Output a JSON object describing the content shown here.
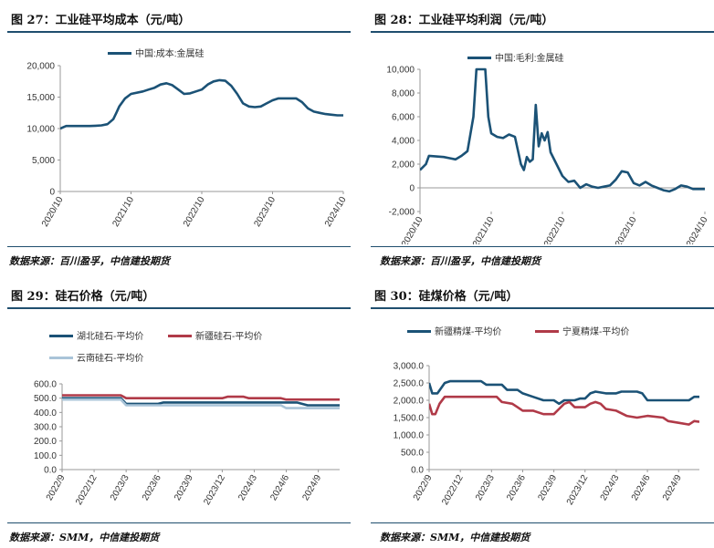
{
  "panels": [
    {
      "title": "图 27：工业硅平均成本（元/吨）",
      "source": "数据来源：百川盈孚，中信建投期货",
      "chart_data": {
        "type": "line",
        "ylim": [
          0,
          20000
        ],
        "yticks": [
          "0",
          "5,000",
          "10,000",
          "15,000",
          "20,000"
        ],
        "xlim": [
          0,
          48
        ],
        "xticks": [
          {
            "label": "2020/10",
            "x": 0
          },
          {
            "label": "2021/10",
            "x": 12
          },
          {
            "label": "2022/10",
            "x": 24
          },
          {
            "label": "2023/10",
            "x": 36
          },
          {
            "label": "2024/10",
            "x": 48
          }
        ],
        "legend_position": "top-center",
        "series": [
          {
            "name": "中国:成本:金属硅",
            "color": "#1b5276",
            "points": [
              [
                0,
                10000
              ],
              [
                0.5,
                10200
              ],
              [
                1,
                10400
              ],
              [
                5,
                10400
              ],
              [
                6,
                10450
              ],
              [
                7,
                10500
              ],
              [
                8,
                10700
              ],
              [
                9,
                11500
              ],
              [
                9.5,
                12500
              ],
              [
                10,
                13500
              ],
              [
                11,
                14800
              ],
              [
                12,
                15500
              ],
              [
                14,
                15900
              ],
              [
                15,
                16200
              ],
              [
                16,
                16500
              ],
              [
                17,
                17000
              ],
              [
                18,
                17200
              ],
              [
                19,
                16900
              ],
              [
                20,
                16200
              ],
              [
                21,
                15500
              ],
              [
                22,
                15600
              ],
              [
                23,
                15900
              ],
              [
                24,
                16200
              ],
              [
                25,
                17000
              ],
              [
                26,
                17500
              ],
              [
                27,
                17700
              ],
              [
                28,
                17600
              ],
              [
                29,
                16800
              ],
              [
                30,
                15500
              ],
              [
                31,
                14000
              ],
              [
                32,
                13500
              ],
              [
                33,
                13400
              ],
              [
                34,
                13500
              ],
              [
                35,
                14000
              ],
              [
                36,
                14500
              ],
              [
                37,
                14800
              ],
              [
                38,
                14800
              ],
              [
                39,
                14800
              ],
              [
                40,
                14800
              ],
              [
                41,
                14200
              ],
              [
                42,
                13200
              ],
              [
                43,
                12700
              ],
              [
                44,
                12500
              ],
              [
                45,
                12300
              ],
              [
                46,
                12200
              ],
              [
                47,
                12100
              ],
              [
                48,
                12100
              ]
            ]
          }
        ]
      }
    },
    {
      "title": "图 28：工业硅平均利润（元/吨）",
      "source": "数据来源：百川盈孚，中信建投期货",
      "chart_data": {
        "type": "line",
        "ylim": [
          -2000,
          10000
        ],
        "yticks": [
          "-2,000",
          "0",
          "2,000",
          "4,000",
          "6,000",
          "8,000",
          "10,000"
        ],
        "xlim": [
          0,
          48
        ],
        "xticks": [
          {
            "label": "2020/10",
            "x": 0
          },
          {
            "label": "2021/10",
            "x": 12
          },
          {
            "label": "2022/10",
            "x": 24
          },
          {
            "label": "2023/10",
            "x": 36
          },
          {
            "label": "2024/10",
            "x": 48
          }
        ],
        "legend_position": "top-center",
        "series": [
          {
            "name": "中国:毛利:金属硅",
            "color": "#1b5276",
            "points": [
              [
                0,
                1500
              ],
              [
                1,
                2000
              ],
              [
                1.5,
                2700
              ],
              [
                4,
                2600
              ],
              [
                5,
                2500
              ],
              [
                6,
                2400
              ],
              [
                7,
                2700
              ],
              [
                8,
                3100
              ],
              [
                9,
                6000
              ],
              [
                9.5,
                10000
              ],
              [
                11,
                10000
              ],
              [
                11.5,
                6000
              ],
              [
                12,
                4600
              ],
              [
                13,
                4300
              ],
              [
                14,
                4200
              ],
              [
                15,
                4500
              ],
              [
                16,
                4300
              ],
              [
                17,
                2000
              ],
              [
                17.5,
                1500
              ],
              [
                18,
                2600
              ],
              [
                18.5,
                2200
              ],
              [
                19,
                2400
              ],
              [
                19.5,
                7000
              ],
              [
                20,
                3500
              ],
              [
                20.5,
                4600
              ],
              [
                21,
                4000
              ],
              [
                21.5,
                4700
              ],
              [
                22,
                3000
              ],
              [
                23,
                2000
              ],
              [
                24,
                1000
              ],
              [
                25,
                500
              ],
              [
                26,
                600
              ],
              [
                27,
                0
              ],
              [
                28,
                300
              ],
              [
                29,
                100
              ],
              [
                30,
                0
              ],
              [
                31,
                100
              ],
              [
                32,
                200
              ],
              [
                33,
                700
              ],
              [
                34,
                1400
              ],
              [
                35,
                1300
              ],
              [
                36,
                400
              ],
              [
                37,
                200
              ],
              [
                38,
                500
              ],
              [
                39,
                200
              ],
              [
                40,
                0
              ],
              [
                41,
                -200
              ],
              [
                42,
                -300
              ],
              [
                43,
                -100
              ],
              [
                44,
                200
              ],
              [
                45,
                100
              ],
              [
                46,
                -100
              ],
              [
                47,
                -100
              ],
              [
                48,
                -100
              ]
            ]
          }
        ]
      }
    },
    {
      "title": "图 29：硅石价格（元/吨）",
      "source": "数据来源：SMM，中信建投期货",
      "chart_data": {
        "type": "line",
        "ylim": [
          0,
          600
        ],
        "yticks": [
          "0.0",
          "100.0",
          "200.0",
          "300.0",
          "400.0",
          "500.0",
          "600.0"
        ],
        "xlim": [
          0,
          26
        ],
        "xticks": [
          {
            "label": "2022/9",
            "x": 0
          },
          {
            "label": "2022/12",
            "x": 3
          },
          {
            "label": "2023/3",
            "x": 6
          },
          {
            "label": "2023/6",
            "x": 9
          },
          {
            "label": "2023/9",
            "x": 12
          },
          {
            "label": "2023/12",
            "x": 15
          },
          {
            "label": "2024/3",
            "x": 18
          },
          {
            "label": "2024/6",
            "x": 21
          },
          {
            "label": "2024/9",
            "x": 24
          }
        ],
        "legend_position": "top",
        "series": [
          {
            "name": "湖北硅石-平均价",
            "color": "#1b5276",
            "points": [
              [
                0,
                500
              ],
              [
                5.5,
                500
              ],
              [
                6,
                460
              ],
              [
                9,
                460
              ],
              [
                9.5,
                470
              ],
              [
                17,
                470
              ],
              [
                17.5,
                470
              ],
              [
                21,
                470
              ],
              [
                22,
                470
              ],
              [
                23,
                450
              ],
              [
                26,
                450
              ]
            ]
          },
          {
            "name": "新疆硅石-平均价",
            "color": "#b03a48",
            "points": [
              [
                0,
                520
              ],
              [
                5.5,
                520
              ],
              [
                6,
                500
              ],
              [
                15,
                500
              ],
              [
                15.5,
                510
              ],
              [
                17,
                510
              ],
              [
                17.5,
                500
              ],
              [
                20.5,
                500
              ],
              [
                21,
                490
              ],
              [
                26,
                490
              ]
            ]
          },
          {
            "name": "云南硅石-平均价",
            "color": "#a9c4d8",
            "points": [
              [
                0,
                490
              ],
              [
                5.5,
                490
              ],
              [
                6,
                450
              ],
              [
                20.5,
                450
              ],
              [
                21,
                430
              ],
              [
                26,
                430
              ]
            ]
          }
        ]
      }
    },
    {
      "title": "图 30：硅煤价格（元/吨）",
      "source": "数据来源：SMM，中信建投期货",
      "chart_data": {
        "type": "line",
        "ylim": [
          0,
          3000
        ],
        "yticks": [
          "0.0",
          "500.0",
          "1,000.0",
          "1,500.0",
          "2,000.0",
          "2,500.0",
          "3,000.0"
        ],
        "xlim": [
          0,
          26
        ],
        "xticks": [
          {
            "label": "2022/9",
            "x": 0
          },
          {
            "label": "2022/12",
            "x": 3
          },
          {
            "label": "2023/3",
            "x": 6
          },
          {
            "label": "2023/6",
            "x": 9
          },
          {
            "label": "2023/9",
            "x": 12
          },
          {
            "label": "2023/12",
            "x": 15
          },
          {
            "label": "2024/3",
            "x": 18
          },
          {
            "label": "2024/6",
            "x": 21
          },
          {
            "label": "2024/9",
            "x": 24
          }
        ],
        "legend_position": "top",
        "series": [
          {
            "name": "新疆精煤-平均价",
            "color": "#1b5276",
            "points": [
              [
                0,
                2500
              ],
              [
                0.3,
                2200
              ],
              [
                0.8,
                2200
              ],
              [
                1.5,
                2500
              ],
              [
                2,
                2550
              ],
              [
                5,
                2550
              ],
              [
                5.5,
                2450
              ],
              [
                7,
                2450
              ],
              [
                7.5,
                2300
              ],
              [
                8.5,
                2300
              ],
              [
                9,
                2200
              ],
              [
                10,
                2100
              ],
              [
                11,
                2000
              ],
              [
                12,
                2000
              ],
              [
                12.5,
                1900
              ],
              [
                13,
                2000
              ],
              [
                14,
                2000
              ],
              [
                14.5,
                2050
              ],
              [
                15,
                2050
              ],
              [
                15.5,
                2200
              ],
              [
                16,
                2250
              ],
              [
                17,
                2200
              ],
              [
                18,
                2200
              ],
              [
                18.5,
                2250
              ],
              [
                20,
                2250
              ],
              [
                20.5,
                2200
              ],
              [
                21,
                2000
              ],
              [
                24,
                2000
              ],
              [
                25,
                2000
              ],
              [
                25.5,
                2100
              ],
              [
                26,
                2100
              ]
            ]
          },
          {
            "name": "宁夏精煤-平均价",
            "color": "#b03a48",
            "points": [
              [
                0,
                1900
              ],
              [
                0.3,
                1600
              ],
              [
                0.6,
                1600
              ],
              [
                1,
                1900
              ],
              [
                1.5,
                2100
              ],
              [
                5,
                2100
              ],
              [
                6.5,
                2100
              ],
              [
                7,
                1950
              ],
              [
                8,
                1900
              ],
              [
                8.5,
                1800
              ],
              [
                9,
                1700
              ],
              [
                10,
                1700
              ],
              [
                11,
                1600
              ],
              [
                12,
                1600
              ],
              [
                12.5,
                1750
              ],
              [
                13,
                1900
              ],
              [
                13.5,
                1950
              ],
              [
                14,
                1800
              ],
              [
                15,
                1800
              ],
              [
                15.5,
                1900
              ],
              [
                16,
                1950
              ],
              [
                16.5,
                1900
              ],
              [
                17,
                1750
              ],
              [
                18,
                1700
              ],
              [
                19,
                1550
              ],
              [
                20,
                1500
              ],
              [
                21,
                1550
              ],
              [
                22.5,
                1500
              ],
              [
                23,
                1400
              ],
              [
                24,
                1350
              ],
              [
                25,
                1300
              ],
              [
                25.5,
                1400
              ],
              [
                26,
                1380
              ]
            ]
          }
        ]
      }
    }
  ]
}
